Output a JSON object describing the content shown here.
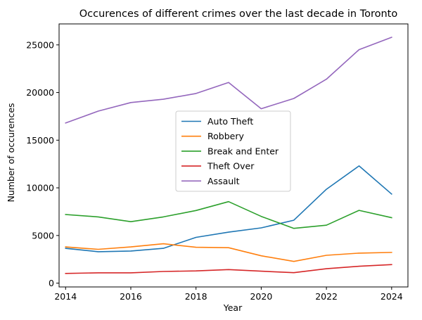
{
  "chart_data": {
    "type": "line",
    "title": "Occurences of different crimes over the last decade in Toronto",
    "xlabel": "Year",
    "ylabel": "Number of occurences",
    "xlim": [
      2013.8,
      2024.5
    ],
    "ylim": [
      -400,
      27200
    ],
    "xticks": [
      2014,
      2016,
      2018,
      2020,
      2022,
      2024
    ],
    "yticks": [
      0,
      5000,
      10000,
      15000,
      20000,
      25000
    ],
    "grid": false,
    "legend_position": "center",
    "x": [
      2014,
      2015,
      2016,
      2017,
      2018,
      2019,
      2020,
      2021,
      2022,
      2023,
      2024
    ],
    "series": [
      {
        "name": "Auto Theft",
        "color": "#1f77b4",
        "values": [
          3650,
          3300,
          3370,
          3650,
          4800,
          5350,
          5800,
          6600,
          9850,
          12300,
          9350
        ]
      },
      {
        "name": "Robbery",
        "color": "#ff7f0e",
        "values": [
          3800,
          3550,
          3800,
          4130,
          3760,
          3720,
          2870,
          2280,
          2920,
          3150,
          3220
        ]
      },
      {
        "name": "Break and Enter",
        "color": "#2ca02c",
        "values": [
          7200,
          6950,
          6450,
          6950,
          7620,
          8550,
          7000,
          5750,
          6080,
          7640,
          6870
        ]
      },
      {
        "name": "Theft Over",
        "color": "#d62728",
        "values": [
          1020,
          1080,
          1080,
          1220,
          1280,
          1420,
          1250,
          1100,
          1510,
          1770,
          1950
        ]
      },
      {
        "name": "Assault",
        "color": "#9467bd",
        "values": [
          16800,
          18050,
          18950,
          19300,
          19900,
          21050,
          18300,
          19380,
          21400,
          24500,
          25800
        ]
      }
    ]
  }
}
